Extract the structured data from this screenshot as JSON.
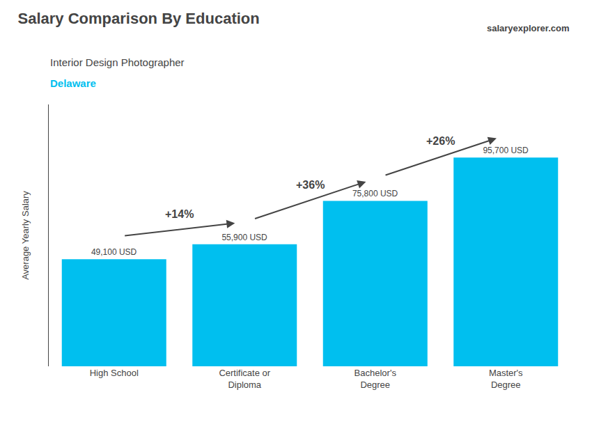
{
  "chart_data": {
    "type": "bar",
    "title": "Salary Comparison By Education",
    "subtitle": "Interior Design Photographer",
    "annotations": [
      "Delaware",
      "salaryexplorer.com"
    ],
    "change_labels": [
      "+14%",
      "+36%",
      "+26%"
    ],
    "categories": [
      "High School",
      "Certificate or\nDiploma",
      "Bachelor's\nDegree",
      "Master's\nDegree"
    ],
    "values": [
      49100,
      55900,
      75800,
      95700
    ],
    "value_labels": [
      "49,100 USD",
      "55,900 USD",
      "75,800 USD",
      "95,700 USD"
    ],
    "color": "#00BFEF",
    "ylabel": "Average Yearly Salary",
    "ylim": [
      0,
      120000
    ],
    "yticks": [],
    "grid": false,
    "data_labels": true,
    "tick_labels": "x"
  }
}
